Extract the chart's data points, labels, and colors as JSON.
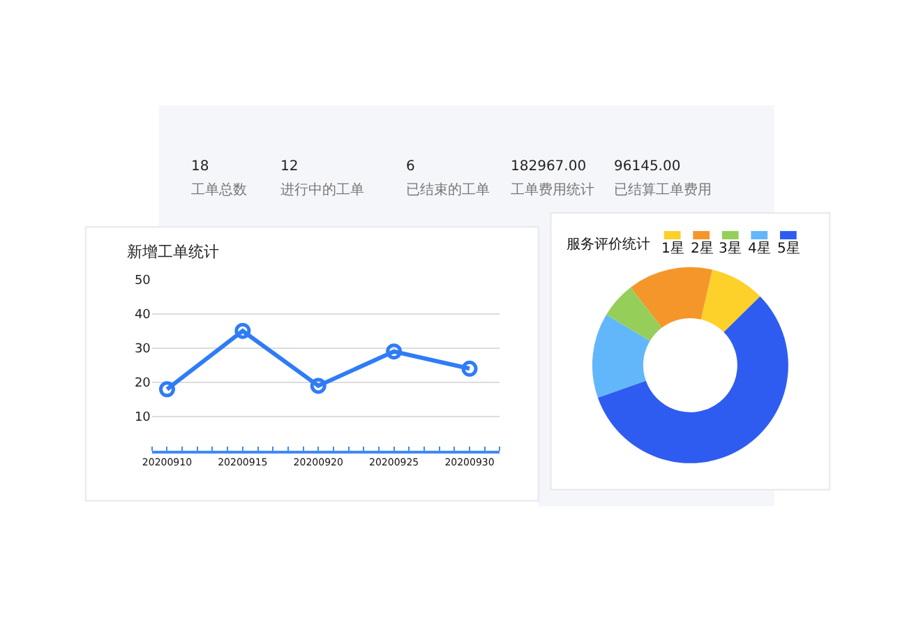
{
  "chart_data": [
    {
      "type": "other",
      "annotations": [
        "18",
        "工单总数",
        "12",
        "进行中的工单",
        "6",
        "已结束的工单",
        "182967.00",
        "工单费用统计",
        "96145.00",
        "已结算工单费用"
      ]
    },
    {
      "type": "line",
      "title": "新增工单统计",
      "x": [
        "2020-09-10",
        "2020-09-15",
        "2020-09-20",
        "2020-09-25",
        "2020-09-30"
      ],
      "series": [
        {
          "color": "#2f7cf6",
          "values": [
            18,
            35,
            19,
            29,
            24
          ]
        }
      ],
      "xlim": [
        "2020-09-09",
        "2020-10-02"
      ],
      "xticks": [
        {
          "value": "2020-09-10",
          "label": "20200910"
        },
        {
          "value": "2020-09-15",
          "label": "20200915"
        },
        {
          "value": "2020-09-20",
          "label": "20200920"
        },
        {
          "value": "2020-09-25",
          "label": "20200925"
        },
        {
          "value": "2020-09-30",
          "label": "20200930"
        }
      ],
      "ylim": [
        0,
        50
      ],
      "yticks": [
        10,
        20,
        30,
        40,
        50
      ],
      "grid": "y",
      "marker": "circle",
      "line_style": "solid"
    },
    {
      "type": "donut",
      "title": "服务评价统计",
      "categories": [
        "1星",
        "2星",
        "3星",
        "4星",
        "5星"
      ],
      "values": [
        9,
        14,
        6,
        14,
        57
      ],
      "colors": [
        "#fdd02a",
        "#f5962b",
        "#95cf5a",
        "#62b7fb",
        "#2f5cf0"
      ],
      "legend": "top"
    }
  ]
}
